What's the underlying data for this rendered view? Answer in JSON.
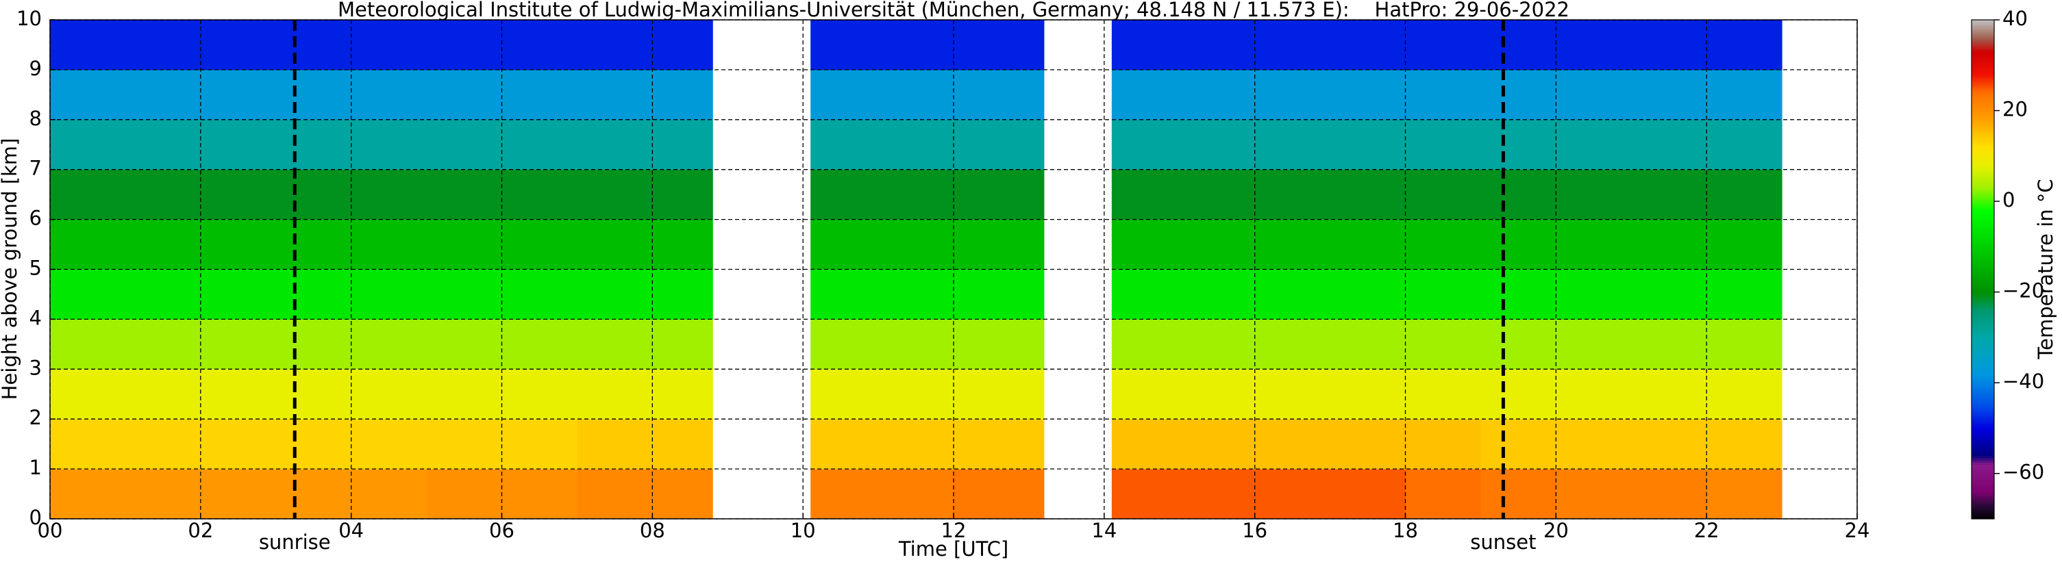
{
  "chart_data": {
    "type": "heatmap",
    "title": "Meteorological Institute of Ludwig-Maximilians-Universität (München, Germany; 48.148 N / 11.573 E):    HatPro: 29-06-2022",
    "x_label": "Time [UTC]",
    "y_label": "Height above ground [km]",
    "colorbar_label": "Temperature in °C",
    "x_edges": [
      0,
      1,
      2,
      3,
      4,
      5,
      6,
      7,
      8,
      8.8,
      10.1,
      11,
      12,
      13,
      13.2,
      14.1,
      15,
      16,
      17,
      18,
      19,
      20,
      21,
      22,
      23,
      24
    ],
    "y_edges": [
      0,
      1,
      2,
      3,
      4,
      5,
      6,
      7,
      8,
      9,
      10
    ],
    "z": [
      [
        19,
        13,
        8,
        3,
        -6,
        -13,
        -21,
        -29,
        -37,
        -48
      ],
      [
        19,
        13,
        8,
        3,
        -6,
        -13,
        -21,
        -29,
        -37,
        -48
      ],
      [
        19,
        13,
        8,
        3,
        -6,
        -13,
        -21,
        -29,
        -37,
        -48
      ],
      [
        19,
        13,
        8,
        3,
        -6,
        -13,
        -21,
        -29,
        -37,
        -48
      ],
      [
        19,
        13,
        8,
        3,
        -6,
        -13,
        -21,
        -29,
        -37,
        -48
      ],
      [
        20,
        13,
        8,
        3,
        -6,
        -13,
        -21,
        -29,
        -37,
        -48
      ],
      [
        20,
        13,
        8,
        3,
        -6,
        -13,
        -21,
        -29,
        -37,
        -48
      ],
      [
        21,
        14,
        8,
        3,
        -6,
        -13,
        -21,
        -29,
        -37,
        -48
      ],
      [
        21,
        14,
        8,
        3,
        -6,
        -13,
        -21,
        -29,
        -37,
        -48
      ],
      null,
      [
        22,
        14,
        8,
        3,
        -6,
        -13,
        -21,
        -29,
        -37,
        -48
      ],
      [
        22,
        14,
        8,
        3,
        -6,
        -13,
        -21,
        -29,
        -37,
        -48
      ],
      [
        23,
        14,
        8,
        3,
        -6,
        -13,
        -21,
        -29,
        -37,
        -48
      ],
      [
        23,
        14,
        8,
        3,
        -6,
        -13,
        -21,
        -29,
        -37,
        -48
      ],
      null,
      [
        25,
        15,
        8,
        3,
        -6,
        -13,
        -21,
        -29,
        -37,
        -48
      ],
      [
        25,
        15,
        8,
        3,
        -6,
        -13,
        -21,
        -29,
        -37,
        -48
      ],
      [
        25,
        15,
        8,
        3,
        -6,
        -13,
        -21,
        -29,
        -37,
        -48
      ],
      [
        25,
        15,
        8,
        3,
        -6,
        -13,
        -21,
        -29,
        -37,
        -48
      ],
      [
        24,
        15,
        8,
        3,
        -6,
        -13,
        -21,
        -29,
        -37,
        -48
      ],
      [
        23,
        14,
        8,
        3,
        -6,
        -13,
        -21,
        -29,
        -37,
        -48
      ],
      [
        22,
        14,
        8,
        3,
        -6,
        -13,
        -21,
        -29,
        -37,
        -48
      ],
      [
        22,
        14,
        8,
        3,
        -6,
        -13,
        -21,
        -29,
        -37,
        -48
      ],
      [
        21,
        14,
        8,
        3,
        -6,
        -13,
        -21,
        -29,
        -37,
        -48
      ],
      null
    ],
    "xlim": [
      0,
      24
    ],
    "xticks": [
      {
        "value": 0,
        "label": "00"
      },
      {
        "value": 2,
        "label": "02"
      },
      {
        "value": 4,
        "label": "04"
      },
      {
        "value": 6,
        "label": "06"
      },
      {
        "value": 8,
        "label": "08"
      },
      10,
      12,
      14,
      16,
      18,
      20,
      22,
      24
    ],
    "ylim": [
      0,
      10
    ],
    "yticks": [
      0,
      1,
      2,
      3,
      4,
      5,
      6,
      7,
      8,
      9,
      10
    ],
    "clim": [
      -70,
      40
    ],
    "cticks": [
      {
        "value": -60,
        "label": "−60"
      },
      {
        "value": -40,
        "label": "−40"
      },
      {
        "value": -20,
        "label": "−20"
      },
      0,
      20,
      40
    ],
    "colormap": {
      "values": [
        -70,
        -67,
        -64,
        -58,
        -56,
        -50,
        -45,
        -38,
        -30,
        -24,
        -20,
        -10,
        -2,
        3,
        8,
        12,
        18,
        24,
        28,
        33,
        36,
        40
      ],
      "colors": [
        "#000000",
        "#2a0a3a",
        "#800070",
        "#8a1a8a",
        "#000080",
        "#0000e0",
        "#0050e8",
        "#0098e0",
        "#00a8a8",
        "#009870",
        "#009000",
        "#00d000",
        "#00ff00",
        "#a0f000",
        "#e8f000",
        "#ffe000",
        "#ffa000",
        "#ff7000",
        "#f01000",
        "#d00000",
        "#a06050",
        "#c0c0c0"
      ]
    },
    "grid": true,
    "markers": [
      {
        "x": 3.25,
        "label": "sunrise"
      },
      {
        "x": 19.3,
        "label": "sunset"
      }
    ]
  }
}
